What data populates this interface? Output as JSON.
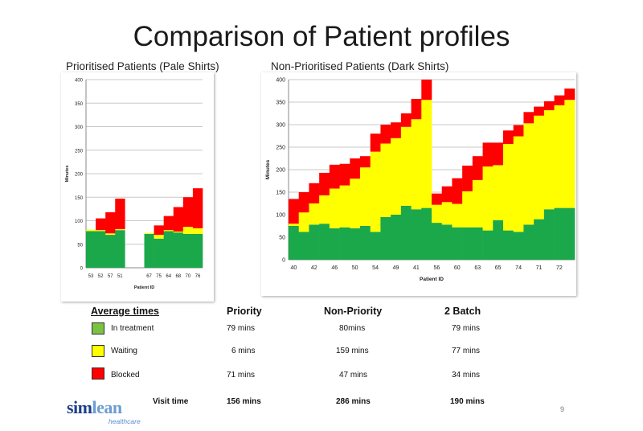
{
  "title": "Comparison of Patient profiles",
  "colors": {
    "treatment": "#1aa84b",
    "waiting": "#ffff00",
    "blocked": "#ff0000",
    "grid": "#c8c8c8",
    "brand_dark": "#1d3f8a",
    "brand_light": "#6b9cd3"
  },
  "chart_data": [
    {
      "type": "bar",
      "stacked": true,
      "title": "Prioritised Patients (Pale Shirts)",
      "xlabel": "Patient ID",
      "ylabel": "Minutes",
      "ylim": [
        0,
        400
      ],
      "yticks": [
        0,
        50,
        100,
        150,
        200,
        250,
        300,
        350,
        400
      ],
      "tick_labels": [
        "53",
        "52",
        "57",
        "51",
        "67",
        "75",
        "64",
        "68",
        "70",
        "76"
      ],
      "tick_positions": [
        0,
        1,
        2,
        3,
        6,
        7,
        8,
        9,
        10,
        11
      ],
      "n_slots": 12,
      "series": [
        {
          "name": "In treatment",
          "values": [
            78,
            78,
            70,
            80,
            null,
            null,
            72,
            62,
            78,
            75,
            72,
            72
          ]
        },
        {
          "name": "Waiting",
          "values": [
            3,
            2,
            3,
            2,
            null,
            null,
            2,
            8,
            2,
            2,
            15,
            12
          ]
        },
        {
          "name": "Blocked",
          "values": [
            0,
            25,
            45,
            65,
            null,
            null,
            0,
            20,
            30,
            52,
            63,
            85
          ]
        }
      ]
    },
    {
      "type": "bar",
      "stacked": true,
      "title": "Non-Prioritised Patients (Dark Shirts)",
      "xlabel": "Patient ID",
      "ylabel": "Minutes",
      "ylim": [
        0,
        400
      ],
      "yticks": [
        0,
        50,
        100,
        150,
        200,
        250,
        300,
        350,
        400
      ],
      "tick_labels": [
        "40",
        "42",
        "46",
        "50",
        "54",
        "49",
        "41",
        "56",
        "60",
        "63",
        "65",
        "74",
        "71",
        "72"
      ],
      "tick_positions": [
        0,
        2,
        4,
        6,
        8,
        10,
        12,
        14,
        16,
        18,
        20,
        22,
        24,
        26
      ],
      "n_slots": 28,
      "series": [
        {
          "name": "In treatment",
          "values": [
            75,
            62,
            78,
            80,
            70,
            72,
            70,
            75,
            62,
            95,
            100,
            120,
            112,
            115,
            82,
            78,
            72,
            72,
            72,
            65,
            88,
            65,
            62,
            78,
            90,
            112,
            115,
            115
          ]
        },
        {
          "name": "Waiting",
          "values": [
            5,
            43,
            47,
            63,
            88,
            93,
            110,
            130,
            178,
            163,
            170,
            175,
            200,
            240,
            40,
            50,
            52,
            80,
            105,
            142,
            122,
            192,
            212,
            225,
            230,
            220,
            228,
            240
          ]
        },
        {
          "name": "Blocked",
          "values": [
            55,
            45,
            45,
            50,
            53,
            48,
            45,
            25,
            40,
            42,
            35,
            30,
            45,
            45,
            25,
            35,
            57,
            57,
            53,
            53,
            50,
            30,
            25,
            25,
            20,
            20,
            22,
            25
          ]
        }
      ]
    }
  ],
  "table": {
    "heading": "Average times",
    "columns": [
      "Priority",
      "Non-Priority",
      "2 Batch"
    ],
    "rows": [
      {
        "label": "In treatment",
        "values": [
          "79 mins",
          "80mins",
          "79 mins"
        ]
      },
      {
        "label": "Waiting",
        "values": [
          "6 mins",
          "159 mins",
          "77 mins"
        ]
      },
      {
        "label": "Blocked",
        "values": [
          "71 mins",
          "47 mins",
          "34 mins"
        ]
      }
    ],
    "visit_time": {
      "label": "Visit time",
      "values": [
        "156  mins",
        "286 mins",
        "190 mins"
      ]
    }
  },
  "logo": {
    "part1": "sim",
    "part2": "lean",
    "sub": "healthcare"
  },
  "page_number": "9"
}
